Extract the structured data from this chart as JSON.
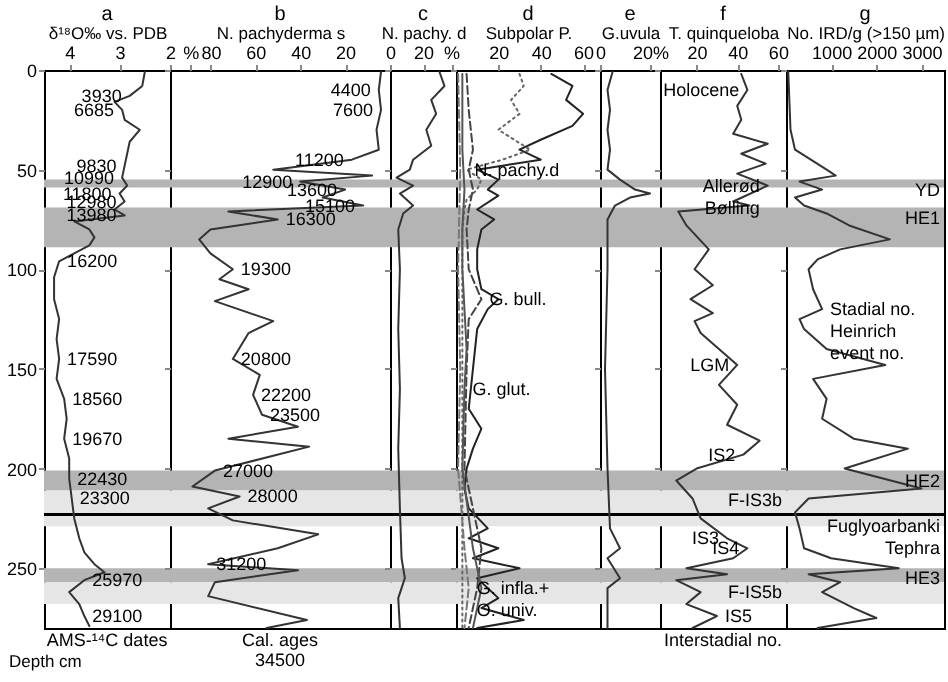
{
  "chart_data": [
    {
      "type": "line",
      "orientation": "horizontal",
      "title": "a",
      "xlabel": "δ¹⁸O‰ vs. PDB",
      "ylabel": "Depth cm",
      "xlim": [
        4.5,
        2
      ],
      "xticks": [
        4,
        3,
        2
      ],
      "ylim": [
        280,
        0
      ],
      "yticks": [
        0,
        50,
        100,
        150,
        200,
        250
      ],
      "series": [
        {
          "color": "#333333",
          "x": [
            1,
            8,
            13,
            16,
            20,
            25,
            30,
            36,
            42,
            48,
            54,
            58,
            62,
            66,
            70,
            73,
            76,
            80,
            84,
            88,
            92,
            96,
            104,
            115,
            125,
            135,
            145,
            155,
            165,
            175,
            185,
            195,
            205,
            215,
            225,
            235,
            242,
            248,
            252,
            256,
            262,
            268,
            274,
            279
          ],
          "values": [
            2.5,
            2.55,
            2.8,
            3.1,
            2.95,
            2.9,
            2.6,
            2.8,
            2.85,
            2.9,
            2.95,
            2.85,
            3.0,
            2.9,
            3.1,
            2.9,
            3.9,
            3.6,
            3.5,
            3.6,
            3.9,
            4.2,
            4.3,
            4.3,
            4.2,
            4.25,
            4.2,
            4.25,
            4.1,
            4.05,
            4.1,
            4.0,
            4.0,
            3.95,
            3.9,
            3.8,
            3.7,
            3.5,
            3.3,
            3.7,
            4.0,
            3.8,
            3.7,
            3.6
          ]
        }
      ],
      "bands": [
        {
          "axis": "y",
          "from": 55,
          "to": 59,
          "color": "#b4b4b4"
        },
        {
          "axis": "y",
          "from": 69,
          "to": 89,
          "color": "#b4b4b4"
        },
        {
          "axis": "y",
          "from": 201,
          "to": 211,
          "color": "#b4b4b4"
        },
        {
          "axis": "y",
          "from": 211,
          "to": 229,
          "color": "#e6e6e6"
        },
        {
          "axis": "y",
          "from": 250,
          "to": 257,
          "color": "#b4b4b4"
        },
        {
          "axis": "y",
          "from": 257,
          "to": 268,
          "color": "#e6e6e6"
        }
      ],
      "ref_lines": [
        {
          "axis": "y",
          "value": 223,
          "color": "#000000"
        }
      ],
      "annotations": [
        {
          "text": "3930",
          "x": 2.8,
          "y": 13
        },
        {
          "text": "6685",
          "x": 2.95,
          "y": 20
        },
        {
          "text": "9830",
          "x": 2.9,
          "y": 48
        },
        {
          "text": "10990",
          "x": 2.95,
          "y": 54
        },
        {
          "text": "11800",
          "x": 3.0,
          "y": 62
        },
        {
          "text": "12980",
          "x": 2.9,
          "y": 66
        },
        {
          "text": "13980",
          "x": 2.9,
          "y": 73
        },
        {
          "text": "16200",
          "x": 4.2,
          "y": 96
        },
        {
          "text": "17590",
          "x": 4.2,
          "y": 145
        },
        {
          "text": "18560",
          "x": 4.1,
          "y": 165
        },
        {
          "text": "19670",
          "x": 4.1,
          "y": 185
        },
        {
          "text": "22430",
          "x": 4.0,
          "y": 205
        },
        {
          "text": "23300",
          "x": 3.95,
          "y": 215
        },
        {
          "text": "25970",
          "x": 3.7,
          "y": 256
        },
        {
          "text": "29100",
          "x": 3.7,
          "y": 274
        },
        "AMS-¹⁴C dates"
      ]
    },
    {
      "type": "line",
      "orientation": "horizontal",
      "title": "b",
      "xlabel": "N. pachyderma s",
      "xlim": [
        98,
        0
      ],
      "xticks": [
        {
          "value": 89,
          "label": "%"
        },
        80,
        60,
        40,
        20
      ],
      "ylim": [
        280,
        0
      ],
      "yticks": [
        0,
        50,
        100,
        150,
        200,
        250
      ],
      "tick_labels": "x",
      "series": [
        {
          "color": "#333333",
          "x": [
            1,
            10,
            20,
            30,
            40,
            45,
            50,
            53,
            56,
            60,
            64,
            68,
            71,
            75,
            80,
            85,
            92,
            100,
            105,
            110,
            116,
            126,
            132,
            145,
            153,
            163,
            173,
            179,
            185,
            189,
            201,
            209,
            214,
            220,
            226,
            233,
            240,
            248,
            251,
            257,
            264,
            276,
            280
          ],
          "values": [
            4,
            5,
            4,
            6,
            5,
            17,
            52,
            8,
            40,
            20,
            30,
            12,
            72,
            50,
            80,
            85,
            80,
            70,
            76,
            63,
            78,
            52,
            63,
            70,
            58,
            61,
            57,
            41,
            72,
            36,
            78,
            88,
            67,
            81,
            70,
            32,
            50,
            81,
            41,
            78,
            81,
            37,
            55
          ]
        }
      ],
      "bands": [
        {
          "axis": "y",
          "from": 55,
          "to": 59,
          "color": "#b4b4b4"
        },
        {
          "axis": "y",
          "from": 69,
          "to": 89,
          "color": "#b4b4b4"
        },
        {
          "axis": "y",
          "from": 201,
          "to": 211,
          "color": "#b4b4b4"
        },
        {
          "axis": "y",
          "from": 211,
          "to": 229,
          "color": "#e6e6e6"
        },
        {
          "axis": "y",
          "from": 250,
          "to": 257,
          "color": "#b4b4b4"
        },
        {
          "axis": "y",
          "from": 257,
          "to": 268,
          "color": "#e6e6e6"
        }
      ],
      "ref_lines": [
        {
          "axis": "y",
          "value": 223,
          "color": "#000000"
        }
      ],
      "annotations": [
        {
          "text": "4400",
          "x": 5,
          "y": 10
        },
        {
          "text": "7600",
          "x": 4,
          "y": 20
        },
        {
          "text": "11200",
          "x": 17,
          "y": 45
        },
        {
          "text": "12900",
          "x": 40,
          "y": 56
        },
        {
          "text": "13600",
          "x": 20,
          "y": 60
        },
        {
          "text": "15100",
          "x": 12,
          "y": 68
        },
        {
          "text": "16300",
          "x": 50,
          "y": 75
        },
        {
          "text": "19300",
          "x": 70,
          "y": 100
        },
        {
          "text": "20800",
          "x": 70,
          "y": 145
        },
        {
          "text": "22200",
          "x": 61,
          "y": 163
        },
        {
          "text": "23500",
          "x": 57,
          "y": 173
        },
        {
          "text": "27000",
          "x": 78,
          "y": 201
        },
        {
          "text": "28000",
          "x": 67,
          "y": 214
        },
        {
          "text": "31200",
          "x": 81,
          "y": 248
        },
        "Cal. ages",
        "34500"
      ]
    },
    {
      "type": "line",
      "orientation": "horizontal",
      "title": "c",
      "xlabel": "N. pachy. d",
      "xlim": [
        0,
        40
      ],
      "xticks": [
        0,
        20,
        {
          "value": 37,
          "label": "%"
        }
      ],
      "ylim": [
        280,
        0
      ],
      "yticks": [
        0,
        50,
        100,
        150,
        200,
        250
      ],
      "tick_labels": "x",
      "series": [
        {
          "color": "#333333",
          "x": [
            1,
            8,
            15,
            22,
            30,
            38,
            45,
            50,
            54,
            58,
            62,
            68,
            72,
            80,
            100,
            130,
            160,
            190,
            220,
            245,
            255,
            265,
            280
          ],
          "values": [
            30,
            33,
            25,
            28,
            22,
            25,
            14,
            12,
            4,
            14,
            6,
            14,
            8,
            5,
            6,
            5,
            6,
            5,
            6,
            7,
            9,
            5,
            6
          ]
        }
      ],
      "bands": [
        {
          "axis": "y",
          "from": 55,
          "to": 59,
          "color": "#b4b4b4"
        },
        {
          "axis": "y",
          "from": 69,
          "to": 89,
          "color": "#b4b4b4"
        },
        {
          "axis": "y",
          "from": 201,
          "to": 211,
          "color": "#b4b4b4"
        },
        {
          "axis": "y",
          "from": 211,
          "to": 229,
          "color": "#e6e6e6"
        },
        {
          "axis": "y",
          "from": 250,
          "to": 257,
          "color": "#b4b4b4"
        },
        {
          "axis": "y",
          "from": 257,
          "to": 268,
          "color": "#e6e6e6"
        }
      ],
      "ref_lines": [
        {
          "axis": "y",
          "value": 223,
          "color": "#000000"
        }
      ]
    },
    {
      "type": "line",
      "orientation": "horizontal",
      "title": "d",
      "xlabel": "Subpolar P.",
      "xlim": [
        0,
        68
      ],
      "xticks": [
        20,
        40,
        60
      ],
      "ylim": [
        280,
        0
      ],
      "yticks": [
        0,
        50,
        100,
        150,
        200,
        250
      ],
      "tick_labels": "x",
      "series": [
        {
          "color": "#222222",
          "line_style": "solid",
          "x": [
            2,
            8,
            15,
            22,
            28,
            35,
            40,
            45,
            50,
            55,
            60,
            63,
            70,
            75,
            80,
            90,
            100,
            110,
            115,
            120,
            130,
            150,
            170,
            180,
            190,
            200,
            210,
            220,
            230,
            235,
            240,
            245,
            250,
            255,
            260,
            265,
            270,
            276,
            280
          ],
          "values": [
            45,
            55,
            52,
            60,
            55,
            40,
            30,
            40,
            10,
            20,
            15,
            20,
            10,
            18,
            12,
            10,
            10,
            12,
            20,
            15,
            10,
            8,
            6,
            12,
            8,
            5,
            4,
            6,
            15,
            6,
            20,
            8,
            30,
            10,
            15,
            20,
            12,
            32,
            10
          ]
        },
        {
          "color": "#666666",
          "line_style": "dotted",
          "x": [
            2,
            8,
            15,
            22,
            30,
            40,
            45,
            50,
            55,
            60,
            65,
            70,
            80,
            100,
            150,
            200,
            250,
            280
          ],
          "values": [
            30,
            32,
            26,
            30,
            20,
            35,
            22,
            5,
            12,
            10,
            5,
            4,
            3,
            3,
            3,
            3,
            3,
            3
          ]
        },
        {
          "color": "#444444",
          "line_style": "dashed",
          "x": [
            2,
            20,
            40,
            50,
            60,
            70,
            80,
            100,
            115,
            125,
            150,
            200,
            240,
            260,
            280
          ],
          "values": [
            5,
            6,
            8,
            6,
            8,
            6,
            5,
            6,
            12,
            6,
            5,
            4,
            12,
            10,
            6
          ]
        },
        {
          "color": "#555555",
          "line_style": "solid",
          "x": [
            2,
            40,
            60,
            80,
            100,
            140,
            160,
            200,
            240,
            260,
            280
          ],
          "values": [
            3,
            3,
            4,
            3,
            3,
            5,
            4,
            3,
            8,
            12,
            8
          ]
        },
        {
          "color": "#777777",
          "line_style": "dashed",
          "x": [
            2,
            50,
            100,
            150,
            200,
            240,
            260,
            280
          ],
          "values": [
            1,
            2,
            1,
            2,
            1,
            4,
            6,
            4
          ]
        }
      ],
      "bands": [
        {
          "axis": "y",
          "from": 55,
          "to": 59,
          "color": "#b4b4b4"
        },
        {
          "axis": "y",
          "from": 69,
          "to": 89,
          "color": "#b4b4b4"
        },
        {
          "axis": "y",
          "from": 201,
          "to": 211,
          "color": "#b4b4b4"
        },
        {
          "axis": "y",
          "from": 211,
          "to": 229,
          "color": "#e6e6e6"
        },
        {
          "axis": "y",
          "from": 250,
          "to": 257,
          "color": "#b4b4b4"
        },
        {
          "axis": "y",
          "from": 257,
          "to": 268,
          "color": "#e6e6e6"
        }
      ],
      "ref_lines": [
        {
          "axis": "y",
          "value": 223,
          "color": "#000000"
        }
      ],
      "annotations": [
        {
          "text": "N. pachy.d",
          "x": 5,
          "y": 50
        },
        {
          "text": "G. bull.",
          "x": 12,
          "y": 115
        },
        {
          "text": "G. glut.",
          "x": 4,
          "y": 160
        },
        {
          "text": "G. infla.+\nO. univ.",
          "x": 6,
          "y": 260
        }
      ]
    },
    {
      "type": "line",
      "orientation": "horizontal",
      "title": "e",
      "xlabel": "G.uvula",
      "xlim": [
        0,
        24
      ],
      "xticks": [
        0,
        {
          "value": 20,
          "label": "20%"
        }
      ],
      "ylim": [
        280,
        0
      ],
      "yticks": [
        0,
        50,
        100,
        150,
        200,
        250
      ],
      "tick_labels": "x",
      "series": [
        {
          "color": "#333333",
          "x": [
            1,
            10,
            20,
            30,
            40,
            50,
            55,
            60,
            62,
            64,
            68,
            75,
            100,
            150,
            200,
            230,
            240,
            245,
            255,
            260,
            280
          ],
          "values": [
            5,
            3,
            4,
            3,
            4,
            3,
            8,
            14,
            20,
            12,
            6,
            3,
            3,
            2,
            3,
            4,
            8,
            3,
            8,
            3,
            3
          ]
        }
      ],
      "bands": [
        {
          "axis": "y",
          "from": 55,
          "to": 59,
          "color": "#b4b4b4"
        },
        {
          "axis": "y",
          "from": 69,
          "to": 89,
          "color": "#b4b4b4"
        },
        {
          "axis": "y",
          "from": 201,
          "to": 211,
          "color": "#b4b4b4"
        },
        {
          "axis": "y",
          "from": 211,
          "to": 229,
          "color": "#e6e6e6"
        },
        {
          "axis": "y",
          "from": 250,
          "to": 257,
          "color": "#b4b4b4"
        },
        {
          "axis": "y",
          "from": 257,
          "to": 268,
          "color": "#e6e6e6"
        }
      ],
      "ref_lines": [
        {
          "axis": "y",
          "value": 223,
          "color": "#000000"
        }
      ]
    },
    {
      "type": "line",
      "orientation": "horizontal",
      "title": "f",
      "xlabel": "T. quinqueloba",
      "xlim": [
        2,
        64
      ],
      "xticks": [
        20,
        40,
        60
      ],
      "ylim": [
        280,
        0
      ],
      "yticks": [
        0,
        50,
        100,
        150,
        200,
        250
      ],
      "tick_labels": "x",
      "series": [
        {
          "color": "#333333",
          "x": [
            2,
            10,
            18,
            25,
            32,
            37,
            42,
            47,
            52,
            58,
            66,
            68,
            71,
            78,
            90,
            100,
            108,
            115,
            122,
            126,
            132,
            148,
            158,
            168,
            178,
            186,
            193,
            200,
            206,
            215,
            225,
            235,
            240,
            245,
            250,
            253,
            256,
            262,
            268,
            274,
            280
          ],
          "values": [
            42,
            45,
            40,
            42,
            38,
            55,
            42,
            54,
            40,
            55,
            38,
            46,
            11,
            15,
            26,
            19,
            28,
            17,
            28,
            19,
            22,
            40,
            31,
            40,
            35,
            51,
            43,
            20,
            10,
            18,
            22,
            35,
            45,
            38,
            15,
            35,
            10,
            22,
            15,
            30,
            18
          ]
        }
      ],
      "bands": [
        {
          "axis": "y",
          "from": 55,
          "to": 59,
          "color": "#b4b4b4"
        },
        {
          "axis": "y",
          "from": 69,
          "to": 89,
          "color": "#b4b4b4"
        },
        {
          "axis": "y",
          "from": 201,
          "to": 211,
          "color": "#b4b4b4"
        },
        {
          "axis": "y",
          "from": 211,
          "to": 229,
          "color": "#e6e6e6",
          "label": "F-IS3b"
        },
        {
          "axis": "y",
          "from": 250,
          "to": 257,
          "color": "#b4b4b4"
        },
        {
          "axis": "y",
          "from": 257,
          "to": 268,
          "color": "#e6e6e6",
          "label": "F-IS5b"
        }
      ],
      "ref_lines": [
        {
          "axis": "y",
          "value": 223,
          "color": "#000000"
        }
      ],
      "annotations": [
        {
          "text": "Holocene",
          "x": 45,
          "y": 10
        },
        {
          "text": "Allerød\nBølling",
          "x": 55,
          "y": 58
        },
        {
          "text": "LGM",
          "x": 40,
          "y": 148
        },
        {
          "text": "IS2",
          "x": 43,
          "y": 193
        },
        {
          "text": "IS3",
          "x": 35,
          "y": 235
        },
        {
          "text": "IS4",
          "x": 45,
          "y": 240
        },
        {
          "text": "IS5",
          "x": 30,
          "y": 274
        },
        "Interstadial no."
      ]
    },
    {
      "type": "line",
      "orientation": "horizontal",
      "title": "g",
      "xlabel": "No. IRD/g (>150 µm)",
      "xlim": [
        0,
        3500
      ],
      "xticks": [
        1000,
        2000,
        3000
      ],
      "ylim": [
        280,
        0
      ],
      "yticks": [
        0,
        50,
        100,
        150,
        200,
        250
      ],
      "tick_labels": "x",
      "series": [
        {
          "color": "#333333",
          "x": [
            1,
            30,
            40,
            50,
            53,
            56,
            60,
            64,
            68,
            72,
            78,
            85,
            90,
            95,
            100,
            110,
            120,
            125,
            130,
            140,
            148,
            155,
            165,
            175,
            185,
            190,
            200,
            210,
            215,
            222,
            230,
            240,
            245,
            250,
            253,
            257,
            262,
            270,
            275,
            280
          ],
          "values": [
            50,
            100,
            200,
            900,
            1100,
            300,
            800,
            200,
            400,
            900,
            1400,
            2300,
            1200,
            700,
            500,
            600,
            800,
            300,
            400,
            900,
            2200,
            600,
            900,
            800,
            1500,
            2700,
            1300,
            3000,
            500,
            200,
            300,
            400,
            1000,
            2500,
            500,
            1200,
            800,
            1500,
            2000,
            700
          ]
        }
      ],
      "bands": [
        {
          "axis": "y",
          "from": 55,
          "to": 59,
          "color": "#b4b4b4",
          "label": "YD"
        },
        {
          "axis": "y",
          "from": 69,
          "to": 89,
          "color": "#b4b4b4",
          "label": "HE1"
        },
        {
          "axis": "y",
          "from": 201,
          "to": 211,
          "color": "#b4b4b4",
          "label": "HE2"
        },
        {
          "axis": "y",
          "from": 211,
          "to": 229,
          "color": "#e6e6e6"
        },
        {
          "axis": "y",
          "from": 250,
          "to": 257,
          "color": "#b4b4b4",
          "label": "HE3"
        },
        {
          "axis": "y",
          "from": 257,
          "to": 268,
          "color": "#e6e6e6"
        }
      ],
      "ref_lines": [
        {
          "axis": "y",
          "value": 223,
          "color": "#000000",
          "label": "Fuglyoarbanki\nTephra"
        }
      ],
      "annotations": [
        {
          "text": "Stadial no.\nHeinrich\nevent no.",
          "x": 800,
          "y": 120
        }
      ]
    }
  ]
}
